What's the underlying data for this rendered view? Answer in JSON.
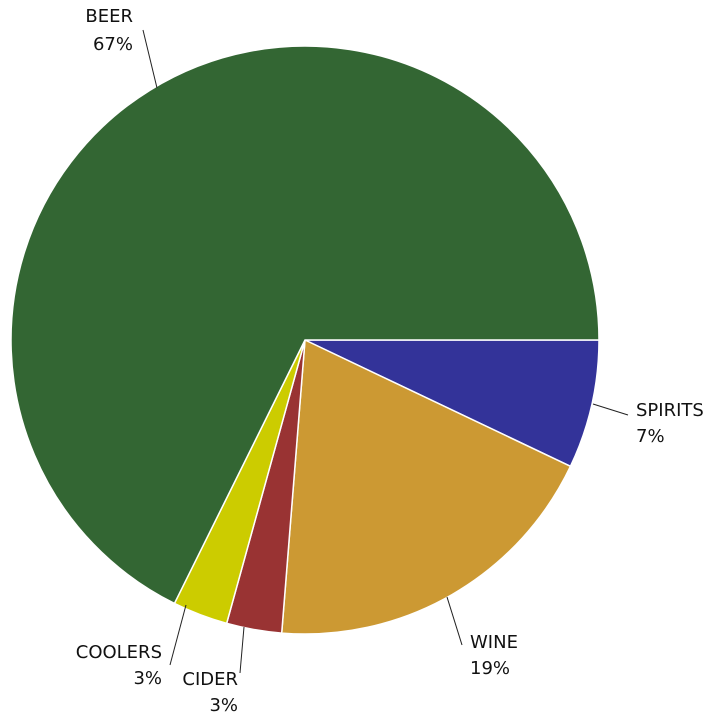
{
  "chart_data": {
    "type": "pie",
    "start": "3 o'clock",
    "direction": "clockwise",
    "slices": [
      {
        "label": "SPIRITS",
        "pct_label": "7%",
        "value": 7,
        "color": "#333399"
      },
      {
        "label": "WINE",
        "pct_label": "19%",
        "value": 19,
        "color": "#CC9933"
      },
      {
        "label": "CIDER",
        "pct_label": "3%",
        "value": 3,
        "color": "#993333"
      },
      {
        "label": "COOLERS",
        "pct_label": "3%",
        "value": 3,
        "color": "#CCCC00"
      },
      {
        "label": "BEER",
        "pct_label": "67%",
        "value": 67,
        "color": "#336633"
      }
    ]
  }
}
